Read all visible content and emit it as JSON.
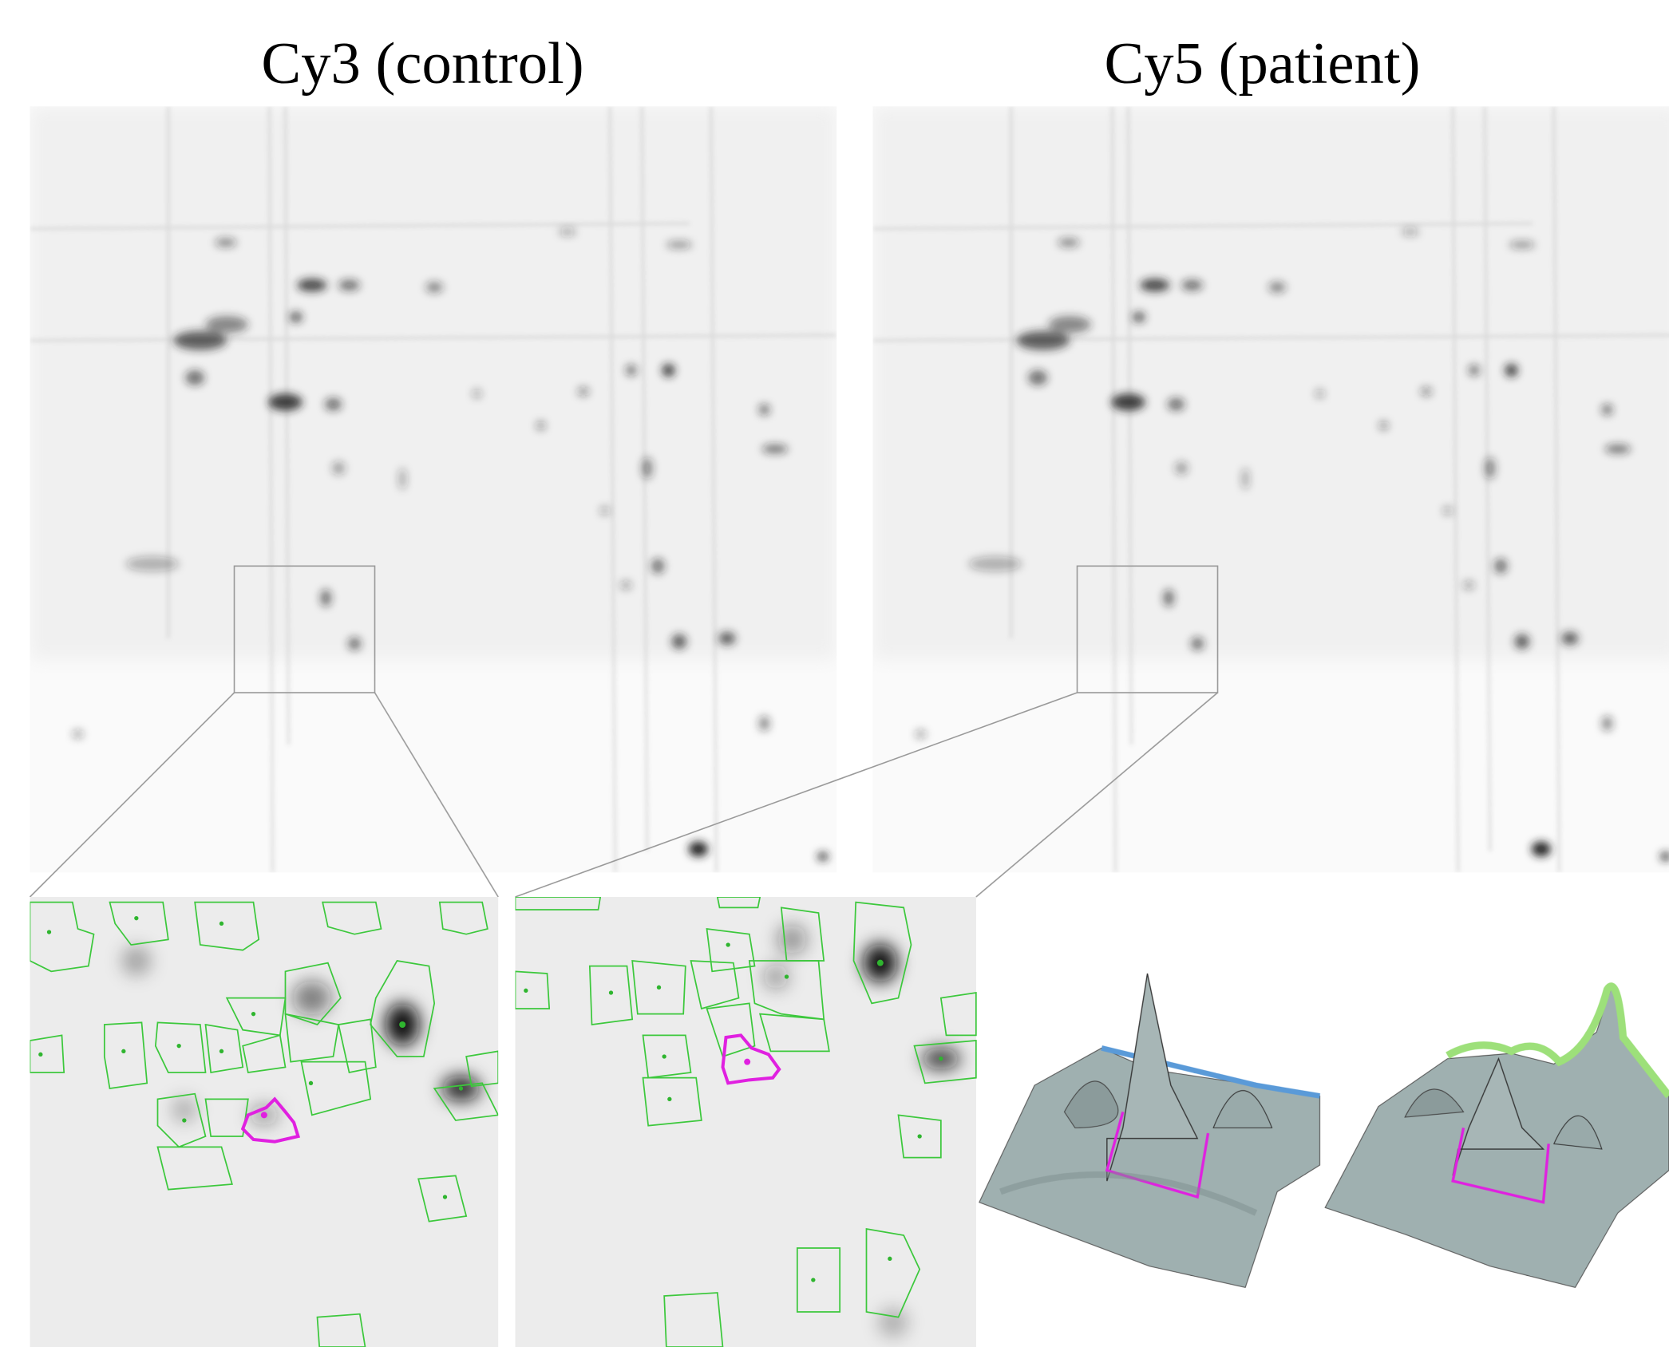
{
  "panels": [
    {
      "title": "Cy3 (control)"
    },
    {
      "title": "Cy5 (patient)"
    }
  ]
}
